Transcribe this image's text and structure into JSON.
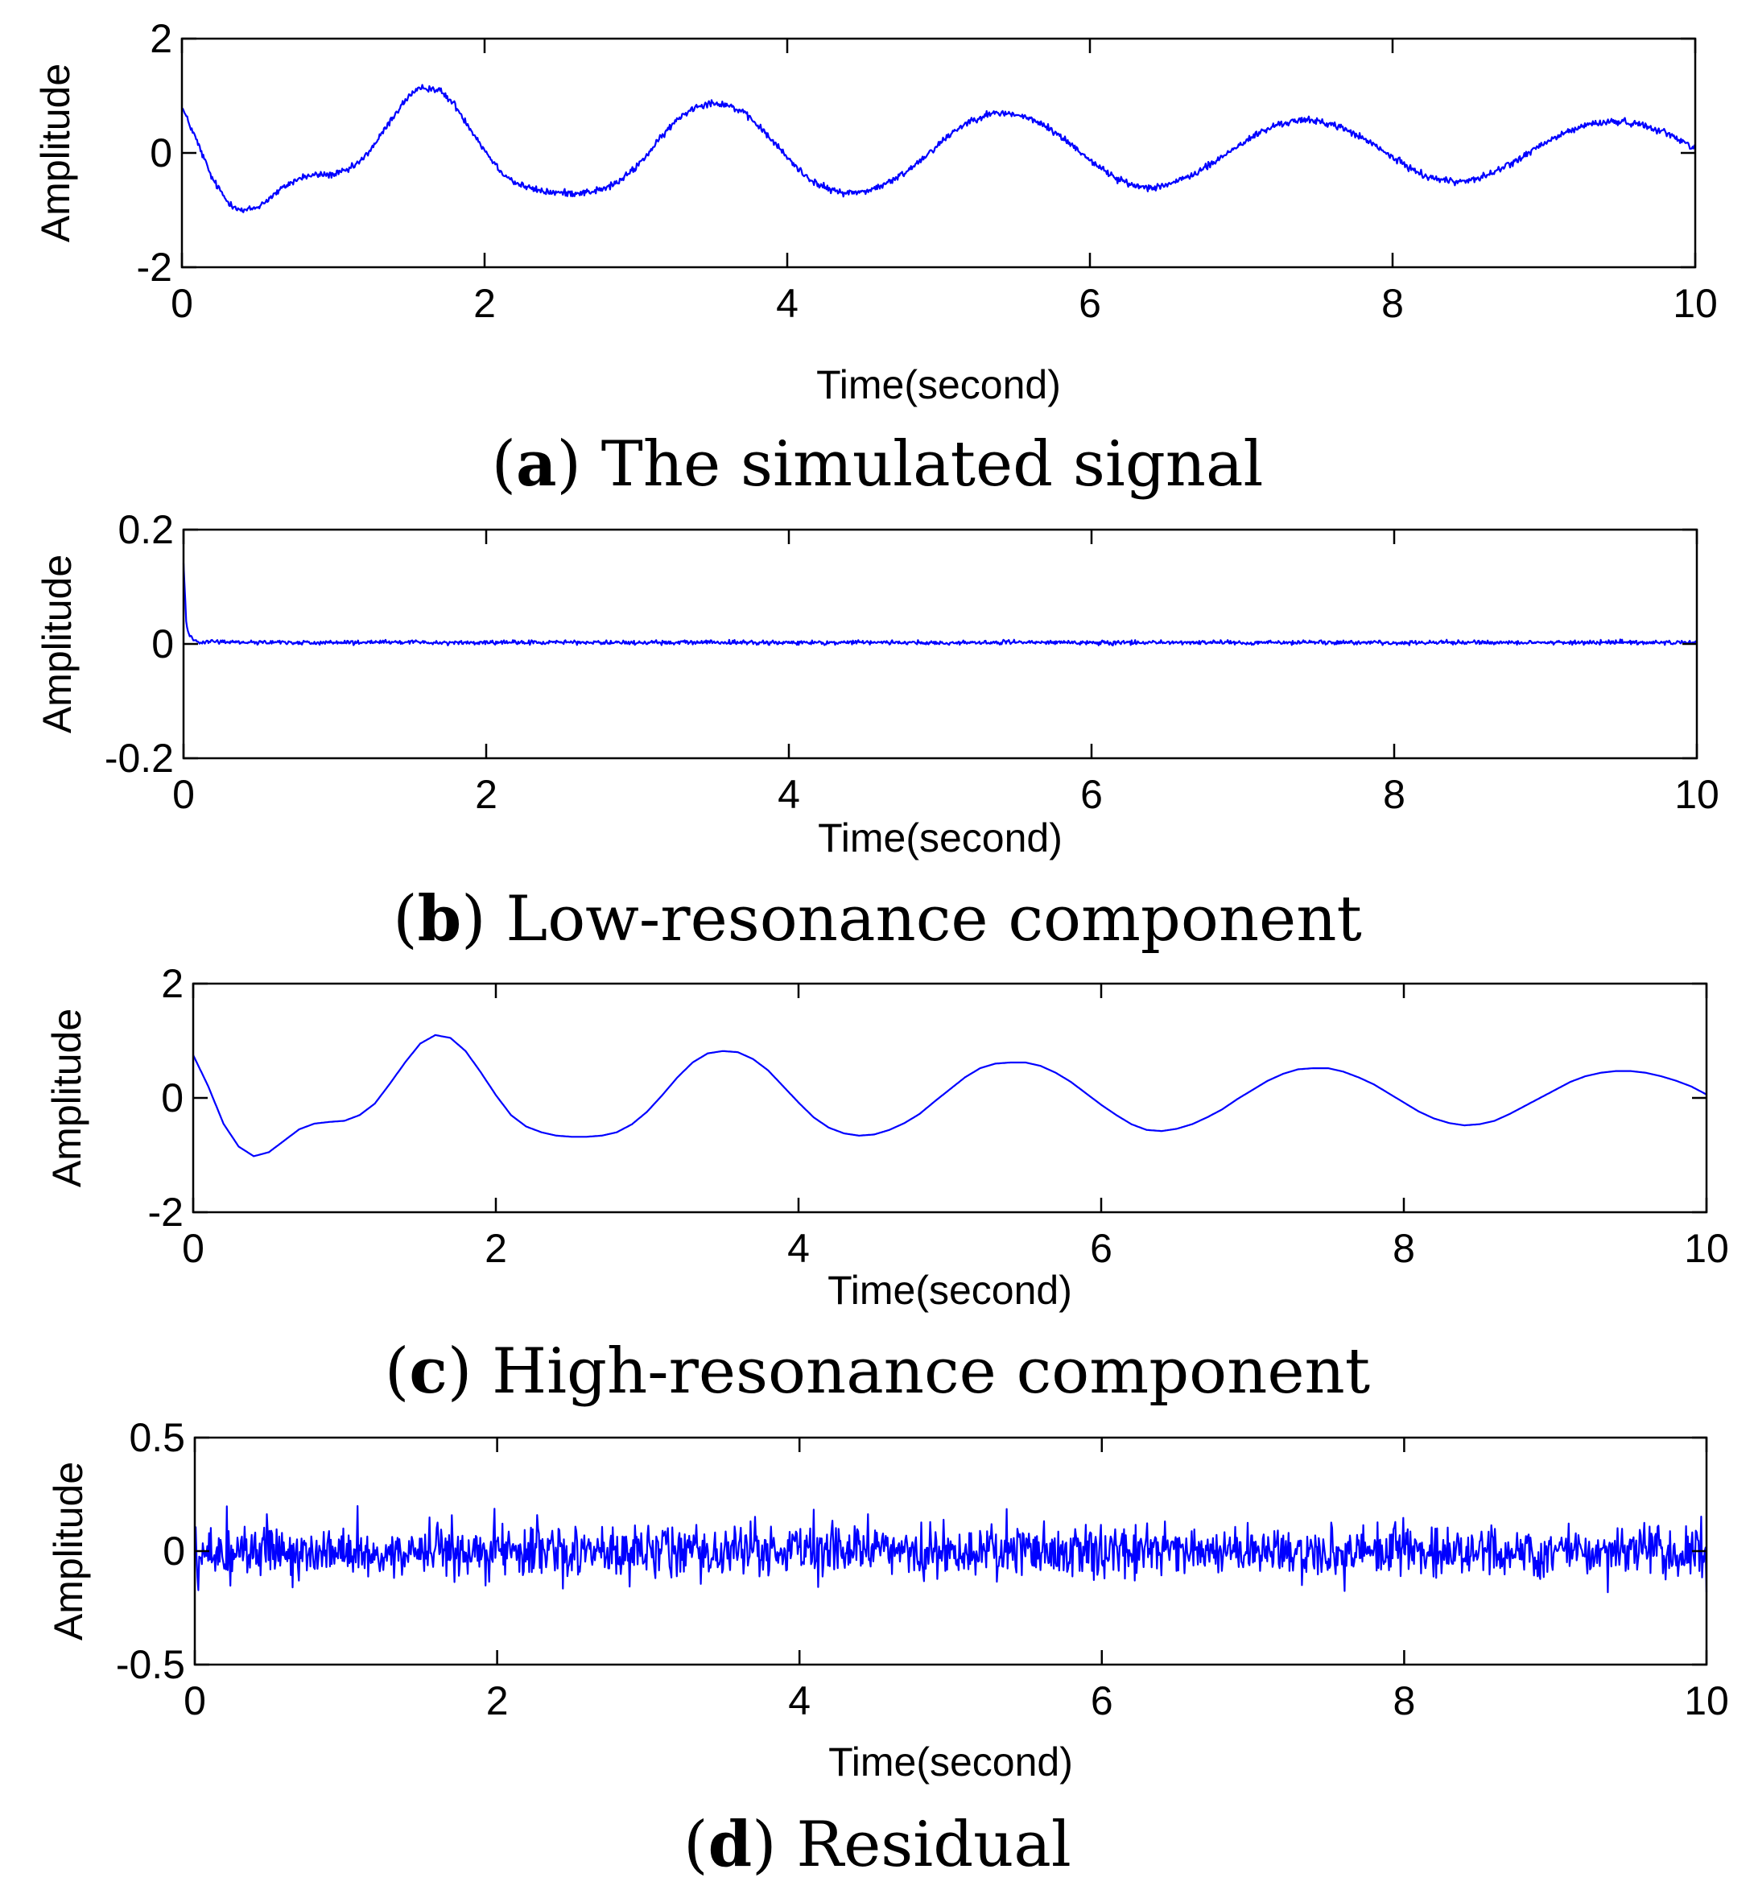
{
  "chart_data": [
    {
      "type": "line",
      "id": "a",
      "caption_letter": "a",
      "caption_text": " The simulated signal",
      "xlabel": "Time(second)",
      "ylabel": "Amplitude",
      "xlim": [
        0,
        10
      ],
      "ylim": [
        -2,
        2
      ],
      "xticks": [
        0,
        2,
        4,
        6,
        8,
        10
      ],
      "yticks": [
        -2,
        0,
        2
      ],
      "xtick_labels": [
        "0",
        "2",
        "4",
        "6",
        "8",
        "10"
      ],
      "ytick_labels": [
        "-2",
        "0",
        "2"
      ],
      "series": [
        {
          "name": "simulated signal",
          "color": "#0000ff",
          "x": [
            0,
            0.1,
            0.2,
            0.3,
            0.4,
            0.5,
            0.6,
            0.7,
            0.8,
            0.9,
            1.0,
            1.1,
            1.2,
            1.3,
            1.4,
            1.5,
            1.6,
            1.7,
            1.8,
            1.9,
            2.0,
            2.1,
            2.2,
            2.3,
            2.4,
            2.5,
            2.6,
            2.7,
            2.8,
            2.9,
            3.0,
            3.1,
            3.2,
            3.3,
            3.4,
            3.5,
            3.6,
            3.7,
            3.8,
            3.9,
            4.0,
            4.1,
            4.2,
            4.3,
            4.4,
            4.5,
            4.6,
            4.7,
            4.8,
            4.9,
            5.0,
            5.1,
            5.2,
            5.3,
            5.4,
            5.5,
            5.6,
            5.7,
            5.8,
            5.9,
            6.0,
            6.1,
            6.2,
            6.3,
            6.4,
            6.5,
            6.6,
            6.7,
            6.8,
            6.9,
            7.0,
            7.1,
            7.2,
            7.3,
            7.4,
            7.5,
            7.6,
            7.7,
            7.8,
            7.9,
            8.0,
            8.1,
            8.2,
            8.3,
            8.4,
            8.5,
            8.6,
            8.7,
            8.8,
            8.9,
            9.0,
            9.1,
            9.2,
            9.3,
            9.4,
            9.5,
            9.6,
            9.7,
            9.8,
            9.9,
            10.0
          ],
          "y": [
            0.8,
            0.2,
            -0.45,
            -0.85,
            -1.02,
            -0.95,
            -0.75,
            -0.55,
            -0.42,
            -0.38,
            -0.38,
            -0.3,
            -0.1,
            0.25,
            0.65,
            1.0,
            1.15,
            1.1,
            0.85,
            0.45,
            0.05,
            -0.3,
            -0.52,
            -0.62,
            -0.68,
            -0.7,
            -0.7,
            -0.68,
            -0.62,
            -0.48,
            -0.25,
            0.05,
            0.38,
            0.65,
            0.82,
            0.88,
            0.85,
            0.72,
            0.5,
            0.22,
            -0.08,
            -0.35,
            -0.55,
            -0.66,
            -0.7,
            -0.68,
            -0.6,
            -0.48,
            -0.3,
            -0.08,
            0.15,
            0.38,
            0.55,
            0.66,
            0.7,
            0.68,
            0.6,
            0.48,
            0.3,
            0.1,
            -0.12,
            -0.32,
            -0.48,
            -0.58,
            -0.6,
            -0.56,
            -0.48,
            -0.35,
            -0.2,
            -0.02,
            0.16,
            0.32,
            0.45,
            0.54,
            0.57,
            0.56,
            0.5,
            0.4,
            0.26,
            0.1,
            -0.08,
            -0.24,
            -0.38,
            -0.46,
            -0.5,
            -0.48,
            -0.42,
            -0.3,
            -0.16,
            0.0,
            0.16,
            0.3,
            0.42,
            0.5,
            0.54,
            0.55,
            0.52,
            0.46,
            0.36,
            0.22,
            0.1
          ],
          "noise_amplitude": 0.05
        }
      ]
    },
    {
      "type": "line",
      "id": "b",
      "caption_letter": "b",
      "caption_text": " Low-resonance component",
      "xlabel": "Time(second)",
      "ylabel": "Amplitude",
      "xlim": [
        0,
        10
      ],
      "ylim": [
        -0.2,
        0.2
      ],
      "xticks": [
        0,
        2,
        4,
        6,
        8,
        10
      ],
      "yticks": [
        -0.2,
        0,
        0.2
      ],
      "xtick_labels": [
        "0",
        "2",
        "4",
        "6",
        "8",
        "10"
      ],
      "ytick_labels": [
        "-0.2",
        "0",
        "0.2"
      ],
      "series": [
        {
          "name": "low-resonance component",
          "color": "#0000ff",
          "x": [
            0,
            0.02,
            0.04,
            0.06,
            0.08,
            0.1,
            0.5,
            1.0,
            1.5,
            2.0,
            2.5,
            3.0,
            3.5,
            4.0,
            4.5,
            5.0,
            5.5,
            6.0,
            6.5,
            7.0,
            7.5,
            8.0,
            8.5,
            9.0,
            9.5,
            10.0
          ],
          "y": [
            0.14,
            0.03,
            0.015,
            0.01,
            0.006,
            0.004,
            0.003,
            0.002,
            0.003,
            0.002,
            0.003,
            0.002,
            0.003,
            0.002,
            0.003,
            0.002,
            0.003,
            0.002,
            0.003,
            0.002,
            0.003,
            0.002,
            0.003,
            0.002,
            0.003,
            0.002
          ],
          "noise_amplitude": 0.003
        }
      ]
    },
    {
      "type": "line",
      "id": "c",
      "caption_letter": "c",
      "caption_text": " High-resonance component",
      "xlabel": "Time(second)",
      "ylabel": "Amplitude",
      "xlim": [
        0,
        10
      ],
      "ylim": [
        -2,
        2
      ],
      "xticks": [
        0,
        2,
        4,
        6,
        8,
        10
      ],
      "yticks": [
        -2,
        0,
        2
      ],
      "xtick_labels": [
        "0",
        "2",
        "4",
        "6",
        "8",
        "10"
      ],
      "ytick_labels": [
        "-2",
        "0",
        "2"
      ],
      "series": [
        {
          "name": "high-resonance component",
          "color": "#0000ff",
          "x": [
            0,
            0.1,
            0.2,
            0.3,
            0.4,
            0.5,
            0.6,
            0.7,
            0.8,
            0.9,
            1.0,
            1.1,
            1.2,
            1.3,
            1.4,
            1.5,
            1.6,
            1.7,
            1.8,
            1.9,
            2.0,
            2.1,
            2.2,
            2.3,
            2.4,
            2.5,
            2.6,
            2.7,
            2.8,
            2.9,
            3.0,
            3.1,
            3.2,
            3.3,
            3.4,
            3.5,
            3.6,
            3.7,
            3.8,
            3.9,
            4.0,
            4.1,
            4.2,
            4.3,
            4.4,
            4.5,
            4.6,
            4.7,
            4.8,
            4.9,
            5.0,
            5.1,
            5.2,
            5.3,
            5.4,
            5.5,
            5.6,
            5.7,
            5.8,
            5.9,
            6.0,
            6.1,
            6.2,
            6.3,
            6.4,
            6.5,
            6.6,
            6.7,
            6.8,
            6.9,
            7.0,
            7.1,
            7.2,
            7.3,
            7.4,
            7.5,
            7.6,
            7.7,
            7.8,
            7.9,
            8.0,
            8.1,
            8.2,
            8.3,
            8.4,
            8.5,
            8.6,
            8.7,
            8.8,
            8.9,
            9.0,
            9.1,
            9.2,
            9.3,
            9.4,
            9.5,
            9.6,
            9.7,
            9.8,
            9.9,
            10.0
          ],
          "y": [
            0.75,
            0.2,
            -0.45,
            -0.85,
            -1.02,
            -0.95,
            -0.75,
            -0.55,
            -0.45,
            -0.42,
            -0.4,
            -0.3,
            -0.1,
            0.25,
            0.62,
            0.95,
            1.1,
            1.05,
            0.82,
            0.45,
            0.05,
            -0.3,
            -0.5,
            -0.6,
            -0.66,
            -0.68,
            -0.68,
            -0.66,
            -0.6,
            -0.46,
            -0.24,
            0.05,
            0.36,
            0.62,
            0.78,
            0.82,
            0.8,
            0.68,
            0.48,
            0.2,
            -0.08,
            -0.34,
            -0.52,
            -0.62,
            -0.66,
            -0.64,
            -0.56,
            -0.44,
            -0.28,
            -0.06,
            0.15,
            0.36,
            0.52,
            0.6,
            0.62,
            0.62,
            0.56,
            0.44,
            0.28,
            0.08,
            -0.12,
            -0.3,
            -0.46,
            -0.56,
            -0.58,
            -0.54,
            -0.46,
            -0.34,
            -0.2,
            -0.02,
            0.14,
            0.3,
            0.42,
            0.5,
            0.52,
            0.52,
            0.46,
            0.36,
            0.24,
            0.08,
            -0.08,
            -0.24,
            -0.36,
            -0.44,
            -0.48,
            -0.46,
            -0.4,
            -0.28,
            -0.14,
            0.0,
            0.14,
            0.28,
            0.38,
            0.44,
            0.47,
            0.47,
            0.44,
            0.38,
            0.3,
            0.2,
            0.06
          ],
          "noise_amplitude": 0
        }
      ]
    },
    {
      "type": "line",
      "id": "d",
      "caption_letter": "d",
      "caption_text": " Residual",
      "xlabel": "Time(second)",
      "ylabel": "Amplitude",
      "xlim": [
        0,
        10
      ],
      "ylim": [
        -0.5,
        0.5
      ],
      "xticks": [
        0,
        2,
        4,
        6,
        8,
        10
      ],
      "yticks": [
        -0.5,
        0,
        0.5
      ],
      "xtick_labels": [
        "0",
        "2",
        "4",
        "6",
        "8",
        "10"
      ],
      "ytick_labels": [
        "-0.5",
        "0",
        "0.5"
      ],
      "series": [
        {
          "name": "residual",
          "color": "#0000ff",
          "x": [
            0,
            10
          ],
          "y": [
            0,
            0
          ],
          "noise_amplitude": 0.09,
          "noise_peak": 0.2
        }
      ]
    }
  ]
}
